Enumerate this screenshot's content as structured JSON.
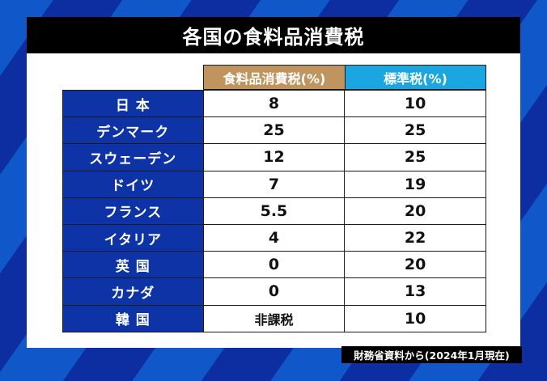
{
  "title": "各国の食料品消費税",
  "colors": {
    "background_dark": "#0c2ea0",
    "background_light": "#1057c9",
    "title_bar": "#000000",
    "header_food": "#c0945e",
    "header_standard": "#1aa6e0",
    "country_cell": "#0d33a6"
  },
  "table": {
    "headers": {
      "food_tax": "食料品消費税(%)",
      "standard_tax": "標準税(%)"
    },
    "rows": [
      {
        "country": "日 本",
        "food_tax": "8",
        "standard_tax": "10"
      },
      {
        "country": "デンマーク",
        "food_tax": "25",
        "standard_tax": "25"
      },
      {
        "country": "スウェーデン",
        "food_tax": "12",
        "standard_tax": "25"
      },
      {
        "country": "ドイツ",
        "food_tax": "7",
        "standard_tax": "19"
      },
      {
        "country": "フランス",
        "food_tax": "5.5",
        "standard_tax": "20"
      },
      {
        "country": "イタリア",
        "food_tax": "4",
        "standard_tax": "22"
      },
      {
        "country": "英 国",
        "food_tax": "0",
        "standard_tax": "20"
      },
      {
        "country": "カナダ",
        "food_tax": "0",
        "standard_tax": "13"
      },
      {
        "country": "韓 国",
        "food_tax": "非課税",
        "standard_tax": "10"
      }
    ]
  },
  "source": "財務省資料から(2024年1月現在)"
}
